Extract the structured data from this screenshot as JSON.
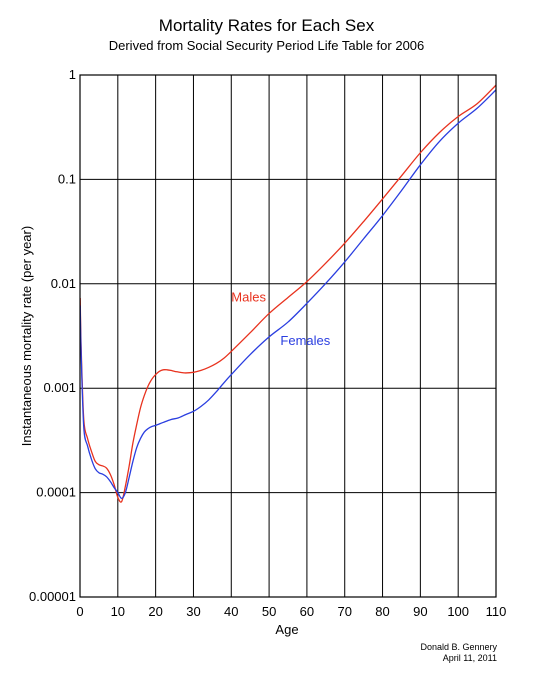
{
  "chart_data": {
    "type": "line",
    "title": "Mortality Rates for Each Sex",
    "subtitle": "Derived from Social Security Period Life Table for 2006",
    "xlabel": "Age",
    "ylabel": "Instantaneous mortality rate (per year)",
    "xlim": [
      0,
      110
    ],
    "ylim": [
      1e-05,
      1
    ],
    "yscale": "log",
    "grid": true,
    "x_ticks": [
      0,
      10,
      20,
      30,
      40,
      50,
      60,
      70,
      80,
      90,
      100,
      110
    ],
    "y_ticks": [
      {
        "value": 1e-05,
        "label": "0.00001"
      },
      {
        "value": 0.0001,
        "label": "0.0001"
      },
      {
        "value": 0.001,
        "label": "0.001"
      },
      {
        "value": 0.01,
        "label": "0.01"
      },
      {
        "value": 0.1,
        "label": "0.1"
      },
      {
        "value": 1,
        "label": "1"
      }
    ],
    "series": [
      {
        "name": "Males",
        "color": "#e8321e",
        "label_position": [
          40,
          0.0068
        ],
        "points": [
          [
            0.05,
            0.0073
          ],
          [
            0.3,
            0.0025
          ],
          [
            1,
            0.0005
          ],
          [
            2,
            0.00033
          ],
          [
            3,
            0.00025
          ],
          [
            4,
            0.0002
          ],
          [
            5,
            0.000185
          ],
          [
            6,
            0.00018
          ],
          [
            7,
            0.000172
          ],
          [
            8,
            0.00015
          ],
          [
            9,
            0.00012
          ],
          [
            10,
            9e-05
          ],
          [
            11,
            8.2e-05
          ],
          [
            12,
            0.000115
          ],
          [
            13,
            0.00018
          ],
          [
            14,
            0.0003
          ],
          [
            15,
            0.00045
          ],
          [
            16,
            0.00065
          ],
          [
            17,
            0.00085
          ],
          [
            18,
            0.00105
          ],
          [
            19,
            0.00122
          ],
          [
            20,
            0.00135
          ],
          [
            21,
            0.00145
          ],
          [
            22,
            0.0015
          ],
          [
            23,
            0.0015
          ],
          [
            24,
            0.00148
          ],
          [
            25,
            0.00145
          ],
          [
            26,
            0.00143
          ],
          [
            27,
            0.00141
          ],
          [
            28,
            0.0014
          ],
          [
            30,
            0.00142
          ],
          [
            32,
            0.00148
          ],
          [
            34,
            0.00158
          ],
          [
            36,
            0.00172
          ],
          [
            38,
            0.00193
          ],
          [
            40,
            0.00225
          ],
          [
            45,
            0.0034
          ],
          [
            50,
            0.0052
          ],
          [
            55,
            0.0074
          ],
          [
            60,
            0.0105
          ],
          [
            65,
            0.0158
          ],
          [
            70,
            0.0245
          ],
          [
            75,
            0.0395
          ],
          [
            80,
            0.065
          ],
          [
            85,
            0.108
          ],
          [
            90,
            0.18
          ],
          [
            95,
            0.28
          ],
          [
            100,
            0.4
          ],
          [
            105,
            0.53
          ],
          [
            110,
            0.8
          ]
        ]
      },
      {
        "name": "Females",
        "color": "#2a3ee0",
        "label_position": [
          53,
          0.0026
        ],
        "points": [
          [
            0.05,
            0.0062
          ],
          [
            0.3,
            0.0022
          ],
          [
            1,
            0.00042
          ],
          [
            2,
            0.00028
          ],
          [
            3,
            0.00021
          ],
          [
            4,
            0.00017
          ],
          [
            5,
            0.000155
          ],
          [
            6,
            0.00015
          ],
          [
            7,
            0.000142
          ],
          [
            8,
            0.000128
          ],
          [
            9,
            0.000112
          ],
          [
            10,
            0.0001
          ],
          [
            11,
            8.8e-05
          ],
          [
            12,
            0.0001
          ],
          [
            13,
            0.00014
          ],
          [
            14,
            0.0002
          ],
          [
            15,
            0.00027
          ],
          [
            16,
            0.00033
          ],
          [
            17,
            0.00038
          ],
          [
            18,
            0.00041
          ],
          [
            19,
            0.00043
          ],
          [
            20,
            0.00044
          ],
          [
            22,
            0.00047
          ],
          [
            24,
            0.0005
          ],
          [
            26,
            0.00052
          ],
          [
            28,
            0.00056
          ],
          [
            30,
            0.0006
          ],
          [
            32,
            0.00067
          ],
          [
            34,
            0.00077
          ],
          [
            36,
            0.00092
          ],
          [
            38,
            0.00112
          ],
          [
            40,
            0.00135
          ],
          [
            45,
            0.0021
          ],
          [
            50,
            0.0031
          ],
          [
            55,
            0.0043
          ],
          [
            60,
            0.0065
          ],
          [
            65,
            0.0101
          ],
          [
            70,
            0.0162
          ],
          [
            75,
            0.027
          ],
          [
            80,
            0.045
          ],
          [
            85,
            0.078
          ],
          [
            90,
            0.138
          ],
          [
            95,
            0.23
          ],
          [
            100,
            0.345
          ],
          [
            105,
            0.48
          ],
          [
            110,
            0.72
          ]
        ]
      }
    ]
  },
  "credit": {
    "author": "Donald B. Gennery",
    "date": "April 11, 2011"
  }
}
